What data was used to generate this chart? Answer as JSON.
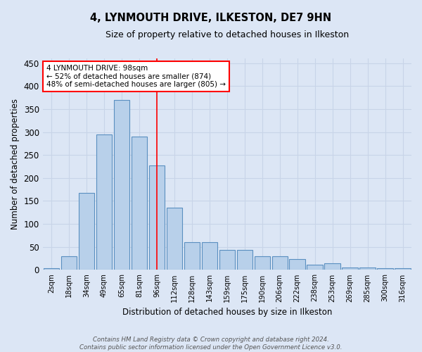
{
  "title": "4, LYNMOUTH DRIVE, ILKESTON, DE7 9HN",
  "subtitle": "Size of property relative to detached houses in Ilkeston",
  "xlabel": "Distribution of detached houses by size in Ilkeston",
  "ylabel": "Number of detached properties",
  "footer_line1": "Contains HM Land Registry data © Crown copyright and database right 2024.",
  "footer_line2": "Contains public sector information licensed under the Open Government Licence v3.0.",
  "categories": [
    "2sqm",
    "18sqm",
    "34sqm",
    "49sqm",
    "65sqm",
    "81sqm",
    "96sqm",
    "112sqm",
    "128sqm",
    "143sqm",
    "159sqm",
    "175sqm",
    "190sqm",
    "206sqm",
    "222sqm",
    "238sqm",
    "253sqm",
    "269sqm",
    "285sqm",
    "300sqm",
    "316sqm"
  ],
  "values": [
    3,
    30,
    167,
    295,
    370,
    290,
    227,
    135,
    60,
    60,
    43,
    43,
    30,
    30,
    23,
    12,
    14,
    6,
    5,
    3,
    3
  ],
  "bar_color": "#b8d0ea",
  "bar_edge_color": "#5a8fc0",
  "grid_color": "#c8d4e8",
  "bg_color": "#dce6f5",
  "annotation_text": "4 LYNMOUTH DRIVE: 98sqm\n← 52% of detached houses are smaller (874)\n48% of semi-detached houses are larger (805) →",
  "annotation_box_color": "white",
  "annotation_box_edge_color": "red",
  "vline_color": "red",
  "vline_x_index": 6,
  "ylim": [
    0,
    460
  ],
  "yticks": [
    0,
    50,
    100,
    150,
    200,
    250,
    300,
    350,
    400,
    450
  ]
}
